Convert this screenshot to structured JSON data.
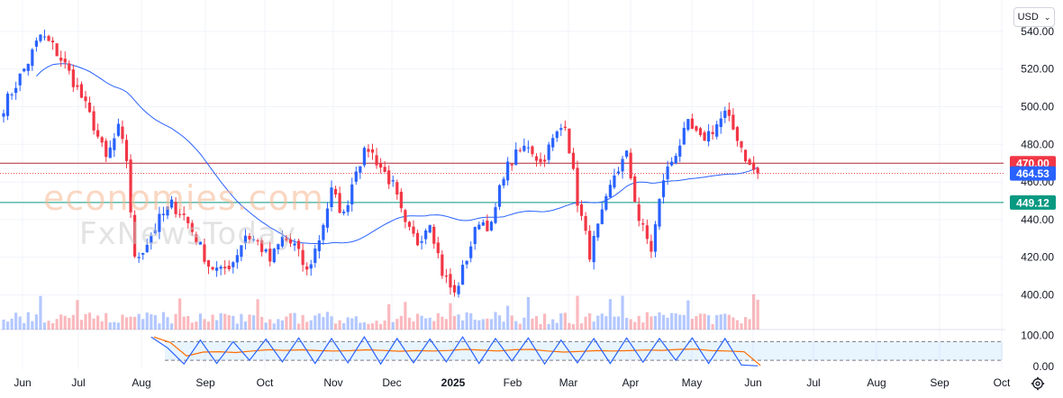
{
  "currency": {
    "label": "USD",
    "icon": "chevron-down-icon"
  },
  "settings": {
    "icon": "gear-icon"
  },
  "watermark": {
    "line1": "economies.com",
    "line2": "FxNewsToday"
  },
  "colors": {
    "up": "#2962ff",
    "down": "#f23645",
    "ma": "#2962ff",
    "resistance": "#b22833",
    "support": "#089981",
    "stochK": "#2962ff",
    "stochD": "#ff6d00"
  },
  "chart_data": {
    "type": "candlestick",
    "price_axis": {
      "ticks": [
        540,
        520,
        500,
        480,
        460,
        440,
        420,
        400
      ],
      "tick_labels": [
        "540.00",
        "520.00",
        "500.00",
        "480.00",
        "460.00",
        "440.00",
        "420.00",
        "400.00"
      ]
    },
    "time_axis": {
      "labels": [
        "Jun",
        "Jul",
        "Aug",
        "Sep",
        "Oct",
        "Nov",
        "Dec",
        "2025",
        "Feb",
        "Mar",
        "Apr",
        "May",
        "Jun",
        "Jul",
        "Aug",
        "Sep",
        "Oct"
      ]
    },
    "levels": [
      {
        "label": "470.00",
        "value": 470.0,
        "kind": "resistance"
      },
      {
        "label": "464.53",
        "value": 464.53,
        "kind": "current"
      },
      {
        "label": "449.12",
        "value": 449.12,
        "kind": "support"
      }
    ],
    "anchors": [
      {
        "t": 0,
        "p": 500
      },
      {
        "t": 3,
        "p": 512
      },
      {
        "t": 6,
        "p": 524
      },
      {
        "t": 9,
        "p": 538
      },
      {
        "t": 12,
        "p": 532
      },
      {
        "t": 15,
        "p": 522
      },
      {
        "t": 19,
        "p": 505
      },
      {
        "t": 22,
        "p": 490
      },
      {
        "t": 25,
        "p": 472
      },
      {
        "t": 28,
        "p": 488
      },
      {
        "t": 30,
        "p": 472
      },
      {
        "t": 32,
        "p": 418
      },
      {
        "t": 35,
        "p": 428
      },
      {
        "t": 38,
        "p": 440
      },
      {
        "t": 41,
        "p": 448
      },
      {
        "t": 44,
        "p": 442
      },
      {
        "t": 47,
        "p": 430
      },
      {
        "t": 50,
        "p": 416
      },
      {
        "t": 53,
        "p": 412
      },
      {
        "t": 56,
        "p": 418
      },
      {
        "t": 59,
        "p": 432
      },
      {
        "t": 62,
        "p": 428
      },
      {
        "t": 65,
        "p": 418
      },
      {
        "t": 68,
        "p": 430
      },
      {
        "t": 71,
        "p": 426
      },
      {
        "t": 74,
        "p": 412
      },
      {
        "t": 77,
        "p": 430
      },
      {
        "t": 80,
        "p": 455
      },
      {
        "t": 83,
        "p": 442
      },
      {
        "t": 86,
        "p": 468
      },
      {
        "t": 89,
        "p": 478
      },
      {
        "t": 92,
        "p": 468
      },
      {
        "t": 95,
        "p": 458
      },
      {
        "t": 98,
        "p": 436
      },
      {
        "t": 101,
        "p": 428
      },
      {
        "t": 104,
        "p": 440
      },
      {
        "t": 107,
        "p": 412
      },
      {
        "t": 110,
        "p": 400
      },
      {
        "t": 113,
        "p": 420
      },
      {
        "t": 116,
        "p": 440
      },
      {
        "t": 119,
        "p": 436
      },
      {
        "t": 122,
        "p": 465
      },
      {
        "t": 125,
        "p": 474
      },
      {
        "t": 128,
        "p": 480
      },
      {
        "t": 131,
        "p": 470
      },
      {
        "t": 134,
        "p": 482
      },
      {
        "t": 137,
        "p": 492
      },
      {
        "t": 140,
        "p": 450
      },
      {
        "t": 143,
        "p": 422
      },
      {
        "t": 146,
        "p": 442
      },
      {
        "t": 149,
        "p": 464
      },
      {
        "t": 152,
        "p": 474
      },
      {
        "t": 155,
        "p": 440
      },
      {
        "t": 158,
        "p": 424
      },
      {
        "t": 161,
        "p": 462
      },
      {
        "t": 164,
        "p": 476
      },
      {
        "t": 167,
        "p": 490
      },
      {
        "t": 170,
        "p": 482
      },
      {
        "t": 173,
        "p": 488
      },
      {
        "t": 176,
        "p": 496
      },
      {
        "t": 179,
        "p": 484
      },
      {
        "t": 182,
        "p": 468
      },
      {
        "t": 184,
        "p": 464.53
      }
    ],
    "volume_range": [
      385,
      400
    ],
    "stoch_axis": {
      "ticks": [
        100,
        0
      ],
      "tick_labels": [
        "100.00",
        "0.00"
      ],
      "band": [
        80,
        20
      ]
    },
    "stoch_anchors": [
      {
        "t": 36,
        "k": 95
      },
      {
        "t": 40,
        "k": 60
      },
      {
        "t": 44,
        "k": 8
      },
      {
        "t": 48,
        "k": 85
      },
      {
        "t": 52,
        "k": 10
      },
      {
        "t": 56,
        "k": 80
      },
      {
        "t": 60,
        "k": 20
      },
      {
        "t": 64,
        "k": 88
      },
      {
        "t": 68,
        "k": 15
      },
      {
        "t": 72,
        "k": 92
      },
      {
        "t": 76,
        "k": 10
      },
      {
        "t": 80,
        "k": 90
      },
      {
        "t": 84,
        "k": 12
      },
      {
        "t": 88,
        "k": 95
      },
      {
        "t": 92,
        "k": 8
      },
      {
        "t": 96,
        "k": 90
      },
      {
        "t": 100,
        "k": 12
      },
      {
        "t": 104,
        "k": 88
      },
      {
        "t": 108,
        "k": 15
      },
      {
        "t": 112,
        "k": 95
      },
      {
        "t": 116,
        "k": 10
      },
      {
        "t": 120,
        "k": 90
      },
      {
        "t": 124,
        "k": 18
      },
      {
        "t": 128,
        "k": 92
      },
      {
        "t": 132,
        "k": 8
      },
      {
        "t": 136,
        "k": 85
      },
      {
        "t": 140,
        "k": 12
      },
      {
        "t": 144,
        "k": 90
      },
      {
        "t": 148,
        "k": 10
      },
      {
        "t": 152,
        "k": 92
      },
      {
        "t": 156,
        "k": 14
      },
      {
        "t": 160,
        "k": 90
      },
      {
        "t": 164,
        "k": 20
      },
      {
        "t": 168,
        "k": 92
      },
      {
        "t": 172,
        "k": 10
      },
      {
        "t": 176,
        "k": 90
      },
      {
        "t": 180,
        "k": 5
      },
      {
        "t": 184,
        "k": 2
      }
    ]
  }
}
